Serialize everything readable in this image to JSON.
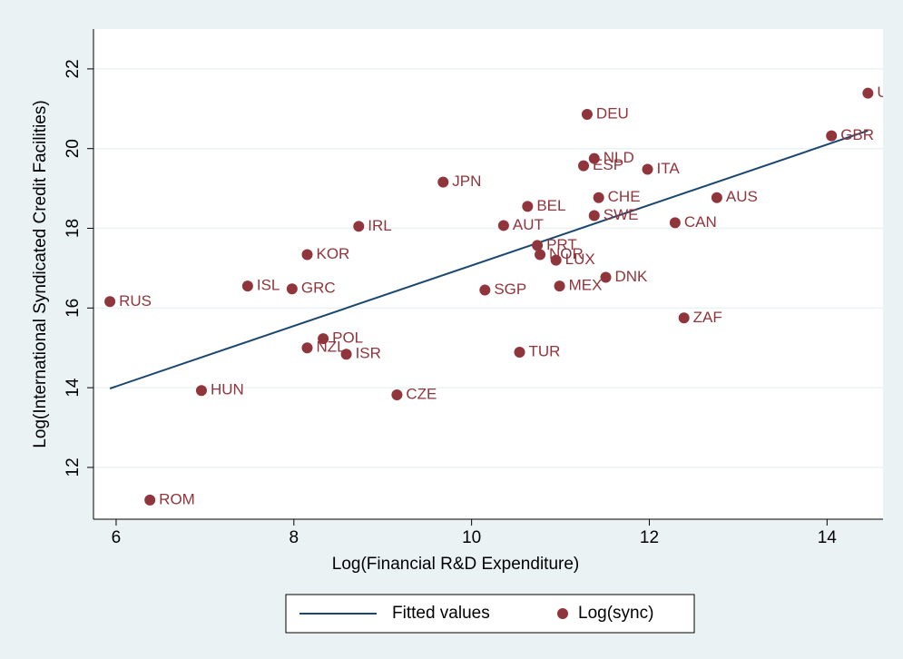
{
  "chart_data": {
    "type": "scatter",
    "xlabel": "Log(Financial R&D Expenditure)",
    "ylabel": "Log(International Syndicated Credit Facilities)",
    "xlim": [
      5.745,
      14.63
    ],
    "ylim": [
      10.7,
      23.0
    ],
    "xticks": [
      6,
      8,
      10,
      12,
      14
    ],
    "yticks": [
      12,
      14,
      16,
      18,
      20,
      22
    ],
    "grid": true,
    "legend": "bottom",
    "series": [
      {
        "name": "Fitted values",
        "type": "line",
        "color": "#1a476f",
        "x": [
          5.93,
          14.46
        ],
        "values": [
          13.98,
          20.45
        ]
      },
      {
        "name": "Log(sync)",
        "type": "scatter",
        "color": "#90353b",
        "labels": [
          "RUS",
          "ROM",
          "HUN",
          "ISL",
          "KOR",
          "GRC",
          "NZL",
          "POL",
          "ISR",
          "IRL",
          "CZE",
          "JPN",
          "SGP",
          "AUT",
          "TUR",
          "BEL",
          "PRT",
          "NOR",
          "LUX",
          "MEX",
          "DEU",
          "ESP",
          "NLD",
          "CHE",
          "SWE",
          "DNK",
          "ITA",
          "ZAF",
          "CAN",
          "AUS",
          "GBR",
          "US"
        ],
        "x": [
          5.93,
          6.38,
          6.96,
          7.48,
          8.15,
          7.98,
          8.15,
          8.33,
          8.59,
          8.73,
          9.16,
          9.68,
          10.15,
          10.36,
          10.54,
          10.63,
          10.74,
          10.77,
          10.95,
          10.99,
          11.3,
          11.26,
          11.38,
          11.43,
          11.38,
          11.51,
          11.98,
          12.39,
          12.29,
          12.76,
          14.05,
          14.46
        ],
        "values": [
          16.16,
          11.18,
          13.93,
          16.55,
          17.34,
          16.48,
          15.0,
          15.23,
          14.84,
          18.05,
          13.82,
          19.16,
          16.45,
          18.07,
          14.89,
          18.55,
          17.57,
          17.34,
          17.2,
          16.55,
          20.86,
          19.57,
          19.75,
          18.77,
          18.32,
          16.77,
          19.48,
          15.75,
          18.14,
          18.77,
          20.32,
          21.39
        ]
      }
    ]
  }
}
